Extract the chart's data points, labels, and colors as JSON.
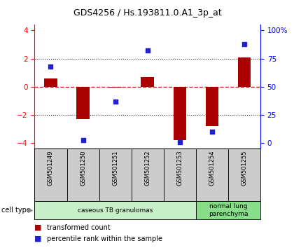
{
  "title": "GDS4256 / Hs.193811.0.A1_3p_at",
  "samples": [
    "GSM501249",
    "GSM501250",
    "GSM501251",
    "GSM501252",
    "GSM501253",
    "GSM501254",
    "GSM501255"
  ],
  "transformed_counts": [
    0.6,
    -2.3,
    -0.05,
    0.7,
    -3.8,
    -2.8,
    2.1
  ],
  "percentile_ranks_pct": [
    68,
    3,
    37,
    82,
    1,
    10,
    88
  ],
  "ylim": [
    -4.4,
    4.4
  ],
  "yticks_left": [
    -4,
    -2,
    0,
    2,
    4
  ],
  "yticks_right_vals": [
    -4,
    -2,
    0,
    2,
    4
  ],
  "yticks_right_labels": [
    "0",
    "25",
    "50",
    "75",
    "100%"
  ],
  "bar_color": "#aa0000",
  "dot_color": "#2222cc",
  "hline_color": "#cc2222",
  "dotline_color": "#222222",
  "cell_types": [
    {
      "label": "caseous TB granulomas",
      "start": 0,
      "end": 5,
      "color": "#c8f0c8"
    },
    {
      "label": "normal lung\nparenchyma",
      "start": 5,
      "end": 7,
      "color": "#88dd88"
    }
  ],
  "legend_bar_label": "transformed count",
  "legend_dot_label": "percentile rank within the sample",
  "cell_type_label": "cell type",
  "background_color": "#ffffff",
  "tick_area_color": "#cccccc",
  "bar_width": 0.4
}
